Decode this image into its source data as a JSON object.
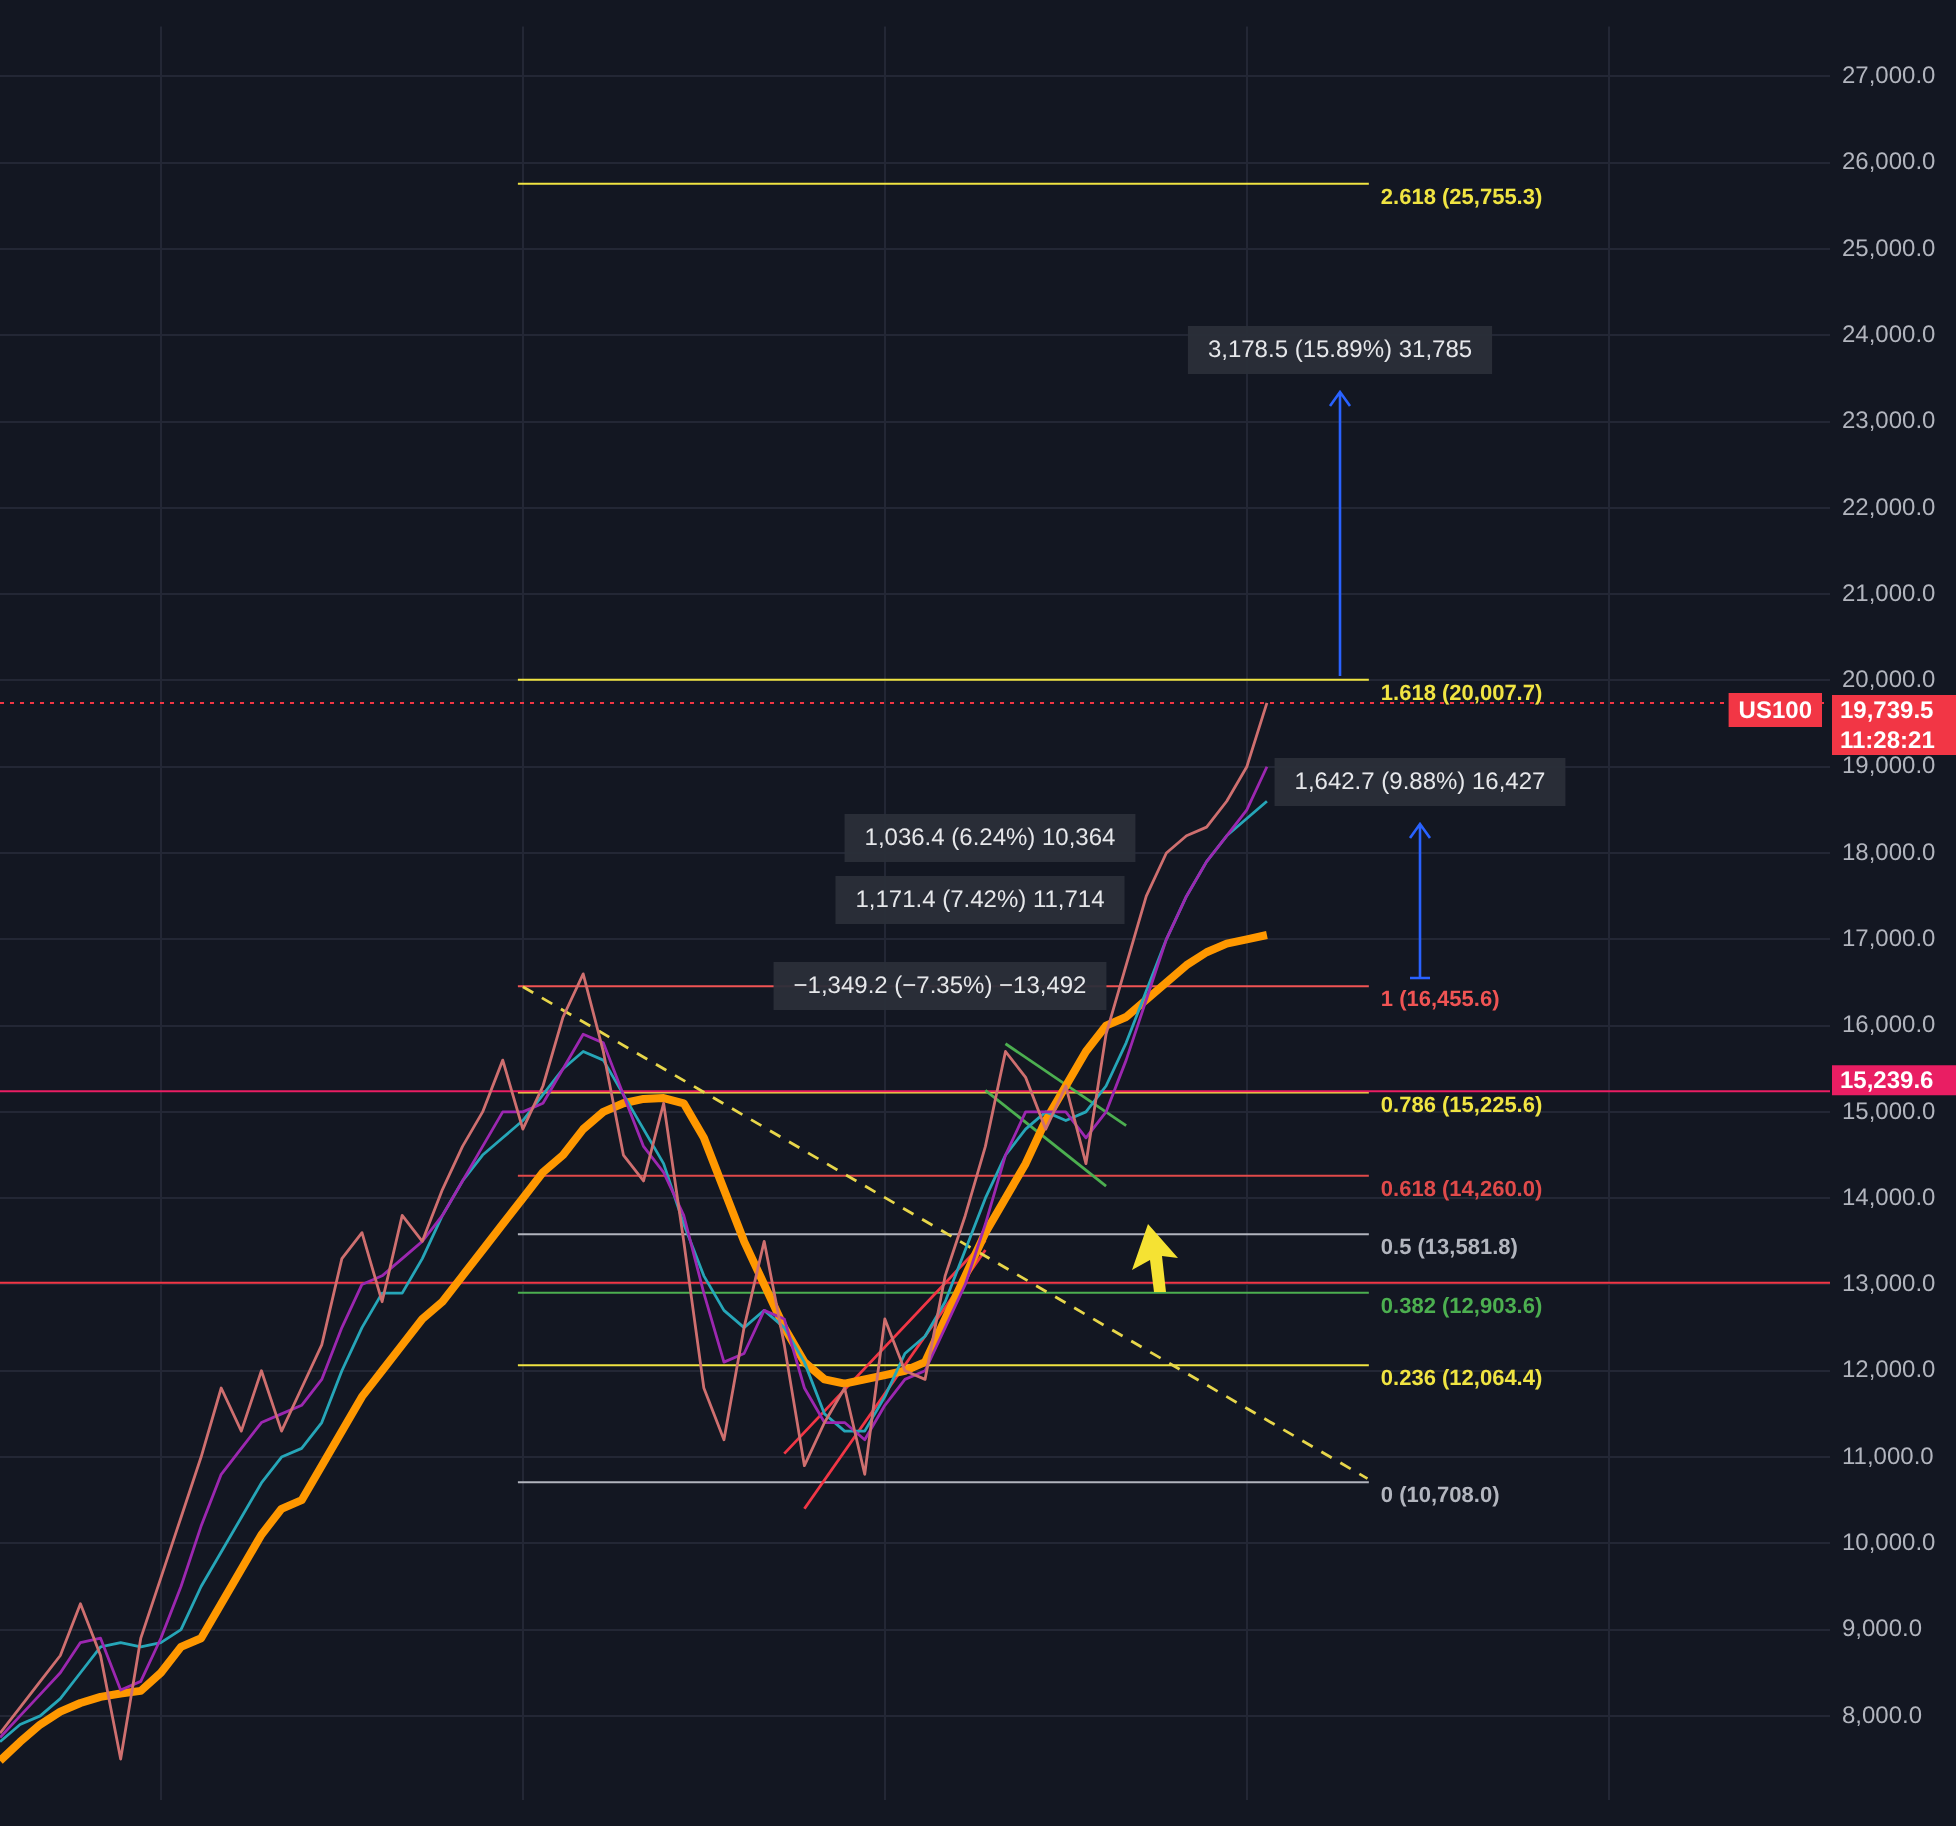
{
  "chart_data": {
    "type": "line",
    "categories": [
      null,
      null,
      null,
      null,
      null,
      null,
      null,
      null,
      null,
      null,
      null,
      null,
      null,
      null,
      null,
      null,
      null,
      null,
      null,
      null,
      null,
      null,
      null,
      null,
      null,
      null,
      null,
      null,
      null,
      null,
      null,
      null,
      null,
      null,
      null,
      null,
      null,
      null,
      null,
      null,
      null,
      null,
      null,
      null,
      null,
      null,
      null,
      null,
      null,
      null,
      null,
      null,
      null,
      null,
      null,
      null,
      null,
      null,
      null,
      null,
      null,
      null,
      null,
      null,
      null,
      null,
      null,
      null,
      null,
      null,
      null,
      null,
      null,
      null,
      null,
      null,
      null,
      null,
      null,
      null,
      null,
      null,
      null,
      null,
      null,
      null,
      null,
      null,
      null,
      null,
      null,
      null
    ],
    "series": [
      {
        "type": "line",
        "color": "#cf6f6f",
        "values": [
          7800,
          8100,
          8400,
          8700,
          9300,
          8700,
          7500,
          8900,
          9600,
          10300,
          11000,
          11800,
          11300,
          12000,
          11300,
          11800,
          12300,
          13300,
          13600,
          12800,
          13800,
          13500,
          14100,
          14600,
          15000,
          15600,
          14800,
          15300,
          16100,
          16600,
          15700,
          14500,
          14200,
          15100,
          13500,
          11800,
          11200,
          12500,
          13500,
          12300,
          10900,
          11400,
          11800,
          10800,
          12600,
          12000,
          11900,
          13100,
          13800,
          14600,
          15700,
          15400,
          14800,
          15300,
          14400,
          15900,
          16700,
          17500,
          18000,
          18200,
          18300,
          18600,
          19000,
          19740,
          null,
          null,
          null,
          null,
          null,
          null,
          null,
          null,
          null,
          null,
          null,
          null,
          null,
          null,
          null,
          null,
          null,
          null,
          null,
          null,
          null,
          null,
          null,
          null,
          null,
          null,
          null,
          null
        ]
      },
      {
        "type": "line",
        "color": "#9c27b0",
        "values": [
          7750,
          8000,
          8250,
          8500,
          8850,
          8900,
          8300,
          8400,
          8900,
          9500,
          10200,
          10800,
          11100,
          11400,
          11500,
          11600,
          11900,
          12500,
          13000,
          13100,
          13300,
          13500,
          13800,
          14200,
          14600,
          15000,
          15000,
          15100,
          15500,
          15900,
          15800,
          15200,
          14600,
          14300,
          13800,
          12900,
          12100,
          12200,
          12700,
          12600,
          11800,
          11400,
          11400,
          11200,
          11600,
          11900,
          12000,
          12500,
          13000,
          13700,
          14500,
          15000,
          15000,
          15000,
          14700,
          15000,
          15600,
          16300,
          17000,
          17500,
          17900,
          18200,
          18500,
          19000,
          null,
          null,
          null,
          null,
          null,
          null,
          null,
          null,
          null,
          null,
          null,
          null,
          null,
          null,
          null,
          null,
          null,
          null,
          null,
          null,
          null,
          null,
          null,
          null,
          null,
          null,
          null,
          null
        ]
      },
      {
        "type": "line",
        "color": "#26a6b8",
        "values": [
          7700,
          7900,
          8000,
          8200,
          8500,
          8800,
          8850,
          8800,
          8850,
          9000,
          9500,
          9900,
          10300,
          10700,
          11000,
          11100,
          11400,
          12000,
          12500,
          12900,
          12900,
          13300,
          13800,
          14200,
          14500,
          14700,
          14900,
          15200,
          15500,
          15700,
          15600,
          15200,
          14800,
          14400,
          13700,
          13100,
          12700,
          12500,
          12700,
          12500,
          12100,
          11500,
          11300,
          11300,
          11700,
          12200,
          12400,
          12800,
          13400,
          14000,
          14500,
          14800,
          15000,
          14900,
          15000,
          15300,
          15800,
          16400,
          17000,
          17500,
          17900,
          18200,
          18400,
          18600,
          null,
          null,
          null,
          null,
          null,
          null,
          null,
          null,
          null,
          null,
          null,
          null,
          null,
          null,
          null,
          null,
          null,
          null,
          null,
          null,
          null,
          null,
          null,
          null,
          null,
          null,
          null,
          null
        ]
      },
      {
        "type": "line",
        "color": "#ff9800",
        "values": [
          7480,
          7700,
          7900,
          8050,
          8150,
          8220,
          8260,
          8290,
          8500,
          8800,
          8900,
          9300,
          9700,
          10100,
          10400,
          10500,
          10900,
          11300,
          11700,
          12000,
          12300,
          12600,
          12800,
          13100,
          13400,
          13700,
          14000,
          14300,
          14500,
          14800,
          15000,
          15100,
          15150,
          15160,
          15100,
          14700,
          14100,
          13500,
          13000,
          12500,
          12100,
          11900,
          11850,
          11900,
          11950,
          12000,
          12100,
          12600,
          13100,
          13600,
          14000,
          14400,
          14900,
          15300,
          15700,
          16000,
          16100,
          16300,
          16500,
          16700,
          16850,
          16950,
          17000,
          17050,
          null,
          null,
          null,
          null,
          null,
          null,
          null,
          null,
          null,
          null,
          null,
          null,
          null,
          null,
          null,
          null,
          null,
          null,
          null,
          null,
          null,
          null,
          null,
          null,
          null,
          null,
          null,
          null
        ]
      },
      {
        "type": "line",
        "color": "#e7d64a",
        "line_style": "dashed",
        "values": [
          null,
          null,
          null,
          null,
          null,
          null,
          null,
          null,
          null,
          null,
          null,
          null,
          null,
          null,
          null,
          null,
          null,
          null,
          null,
          null,
          null,
          null,
          null,
          null,
          null,
          null,
          16450,
          null,
          null,
          null,
          null,
          null,
          null,
          null,
          null,
          null,
          null,
          null,
          null,
          null,
          null,
          null,
          null,
          null,
          null,
          null,
          null,
          null,
          null,
          null,
          null,
          null,
          null,
          null,
          null,
          null,
          null,
          null,
          null,
          null,
          null,
          null,
          null,
          null,
          null,
          null,
          null,
          null,
          10750,
          null,
          null,
          null,
          null,
          null,
          null,
          null,
          null,
          null,
          null,
          null,
          null,
          null,
          null,
          null,
          null,
          null,
          null,
          null,
          null,
          null,
          null,
          null
        ]
      },
      {
        "type": "line",
        "color": "#f23645",
        "values": [
          null,
          null,
          null,
          null,
          null,
          null,
          null,
          null,
          null,
          null,
          null,
          null,
          null,
          null,
          null,
          null,
          null,
          null,
          null,
          null,
          null,
          null,
          null,
          null,
          null,
          null,
          null,
          null,
          null,
          null,
          null,
          null,
          null,
          null,
          null,
          null,
          null,
          null,
          null,
          null,
          10400,
          null,
          null,
          null,
          null,
          null,
          null,
          null,
          null,
          13400,
          null,
          null,
          null,
          null,
          null,
          null,
          null,
          null,
          null,
          null,
          null,
          null,
          null,
          null,
          null,
          null,
          null,
          null,
          null,
          null,
          null,
          null,
          null,
          null,
          null,
          null,
          null,
          null,
          null,
          null,
          null,
          null,
          null,
          null,
          null,
          null,
          null,
          null,
          null,
          null,
          null,
          null
        ]
      },
      {
        "type": "line",
        "color": "#f23645",
        "values": [
          null,
          null,
          null,
          null,
          null,
          null,
          null,
          null,
          null,
          null,
          null,
          null,
          null,
          null,
          null,
          null,
          null,
          null,
          null,
          null,
          null,
          null,
          null,
          null,
          null,
          null,
          null,
          null,
          null,
          null,
          null,
          null,
          null,
          null,
          null,
          null,
          null,
          null,
          null,
          11040,
          null,
          null,
          null,
          null,
          null,
          null,
          null,
          null,
          null,
          13510,
          null,
          null,
          null,
          null,
          null,
          null,
          null,
          null,
          null,
          null,
          null,
          null,
          null,
          null,
          null,
          null,
          null,
          null,
          null,
          null,
          null,
          null,
          null,
          null,
          null,
          null,
          null,
          null,
          null,
          null,
          null,
          null,
          null,
          null,
          null,
          null,
          null,
          null,
          null,
          null,
          null,
          null
        ]
      },
      {
        "type": "line",
        "color": "#4caf50",
        "values": [
          null,
          null,
          null,
          null,
          null,
          null,
          null,
          null,
          null,
          null,
          null,
          null,
          null,
          null,
          null,
          null,
          null,
          null,
          null,
          null,
          null,
          null,
          null,
          null,
          null,
          null,
          null,
          null,
          null,
          null,
          null,
          null,
          null,
          null,
          null,
          null,
          null,
          null,
          null,
          null,
          null,
          null,
          null,
          null,
          null,
          null,
          null,
          null,
          null,
          null,
          15790,
          null,
          null,
          null,
          null,
          null,
          14840,
          null,
          null,
          null,
          null,
          null,
          null,
          null,
          null,
          null,
          null,
          null,
          null,
          null,
          null,
          null,
          null,
          null,
          null,
          null,
          null,
          null,
          null,
          null,
          null,
          null,
          null,
          null,
          null,
          null,
          null,
          null,
          null,
          null,
          null,
          null
        ]
      },
      {
        "type": "line",
        "color": "#4caf50",
        "values": [
          null,
          null,
          null,
          null,
          null,
          null,
          null,
          null,
          null,
          null,
          null,
          null,
          null,
          null,
          null,
          null,
          null,
          null,
          null,
          null,
          null,
          null,
          null,
          null,
          null,
          null,
          null,
          null,
          null,
          null,
          null,
          null,
          null,
          null,
          null,
          null,
          null,
          null,
          null,
          null,
          null,
          null,
          null,
          null,
          null,
          null,
          null,
          null,
          null,
          15250,
          null,
          null,
          null,
          null,
          null,
          14140,
          null,
          null,
          null,
          null,
          null,
          null,
          null,
          null,
          null,
          null,
          null,
          null,
          null,
          null,
          null,
          null,
          null,
          null,
          null,
          null,
          null,
          null,
          null,
          null,
          null,
          null,
          null,
          null,
          null,
          null,
          null,
          null,
          null,
          null,
          null,
          null
        ]
      }
    ],
    "ylim": [
      7030,
      27580
    ],
    "yticks": [
      {
        "value": 8000,
        "label": "8,000.0"
      },
      {
        "value": 9000,
        "label": "9,000.0"
      },
      {
        "value": 10000,
        "label": "10,000.0"
      },
      {
        "value": 11000,
        "label": "11,000.0"
      },
      {
        "value": 12000,
        "label": "12,000.0"
      },
      {
        "value": 13000,
        "label": "13,000.0"
      },
      {
        "value": 14000,
        "label": "14,000.0"
      },
      {
        "value": 15000,
        "label": "15,000.0"
      },
      {
        "value": 16000,
        "label": "16,000.0"
      },
      {
        "value": 17000,
        "label": "17,000.0"
      },
      {
        "value": 18000,
        "label": "18,000.0"
      },
      {
        "value": 19000,
        "label": "19,000.0"
      },
      {
        "value": 20000,
        "label": "20,000.0"
      },
      {
        "value": 21000,
        "label": "21,000.0"
      },
      {
        "value": 22000,
        "label": "22,000.0"
      },
      {
        "value": 23000,
        "label": "23,000.0"
      },
      {
        "value": 24000,
        "label": "24,000.0"
      },
      {
        "value": 25000,
        "label": "25,000.0"
      },
      {
        "value": 26000,
        "label": "26,000.0"
      },
      {
        "value": 27000,
        "label": "27,000.0"
      }
    ],
    "ref_lines": [
      {
        "axis": "y",
        "value": 25755.3,
        "label": "2.618 (25,755.3)",
        "color": "#f0e442"
      },
      {
        "axis": "y",
        "value": 20007.7,
        "label": "1.618 (20,007.7)",
        "color": "#f0e442"
      },
      {
        "axis": "y",
        "value": 16455.6,
        "label": "1 (16,455.6)",
        "color": "#f05454"
      },
      {
        "axis": "y",
        "value": 15225.6,
        "label": "0.786 (15,225.6)",
        "color": "#f0e442"
      },
      {
        "axis": "y",
        "value": 14260.0,
        "label": "0.618 (14,260.0)",
        "color": "#e04a4a"
      },
      {
        "axis": "y",
        "value": 13581.8,
        "label": "0.5 (13,581.8)",
        "color": "#b2b5be"
      },
      {
        "axis": "y",
        "value": 12903.6,
        "label": "0.382 (12,903.6)",
        "color": "#4caf50"
      },
      {
        "axis": "y",
        "value": 12064.4,
        "label": "0.236 (12,064.4)",
        "color": "#f0e442"
      },
      {
        "axis": "y",
        "value": 10708.0,
        "label": "0 (10,708.0)",
        "color": "#b2b5be"
      },
      {
        "axis": "y",
        "value": 15239.6,
        "color": "#e91e63"
      },
      {
        "axis": "y",
        "value": 13020,
        "color": "#f23645"
      },
      {
        "axis": "y",
        "value": 19739.5,
        "color": "#f23645",
        "line_style": "dotted"
      }
    ],
    "annotations": [
      "3,178.5 (15.89%) 31,785",
      "1,642.7 (9.88%) 16,427",
      "1,036.4 (6.24%) 10,364",
      "1,171.4 (7.42%) 11,714",
      "−1,349.2 (−7.35%) −13,492",
      "19,739.5",
      "11:28:21",
      "US100",
      "15,239.6"
    ],
    "grid": true,
    "legend": false,
    "tick_labels": "y",
    "marker": "none"
  }
}
